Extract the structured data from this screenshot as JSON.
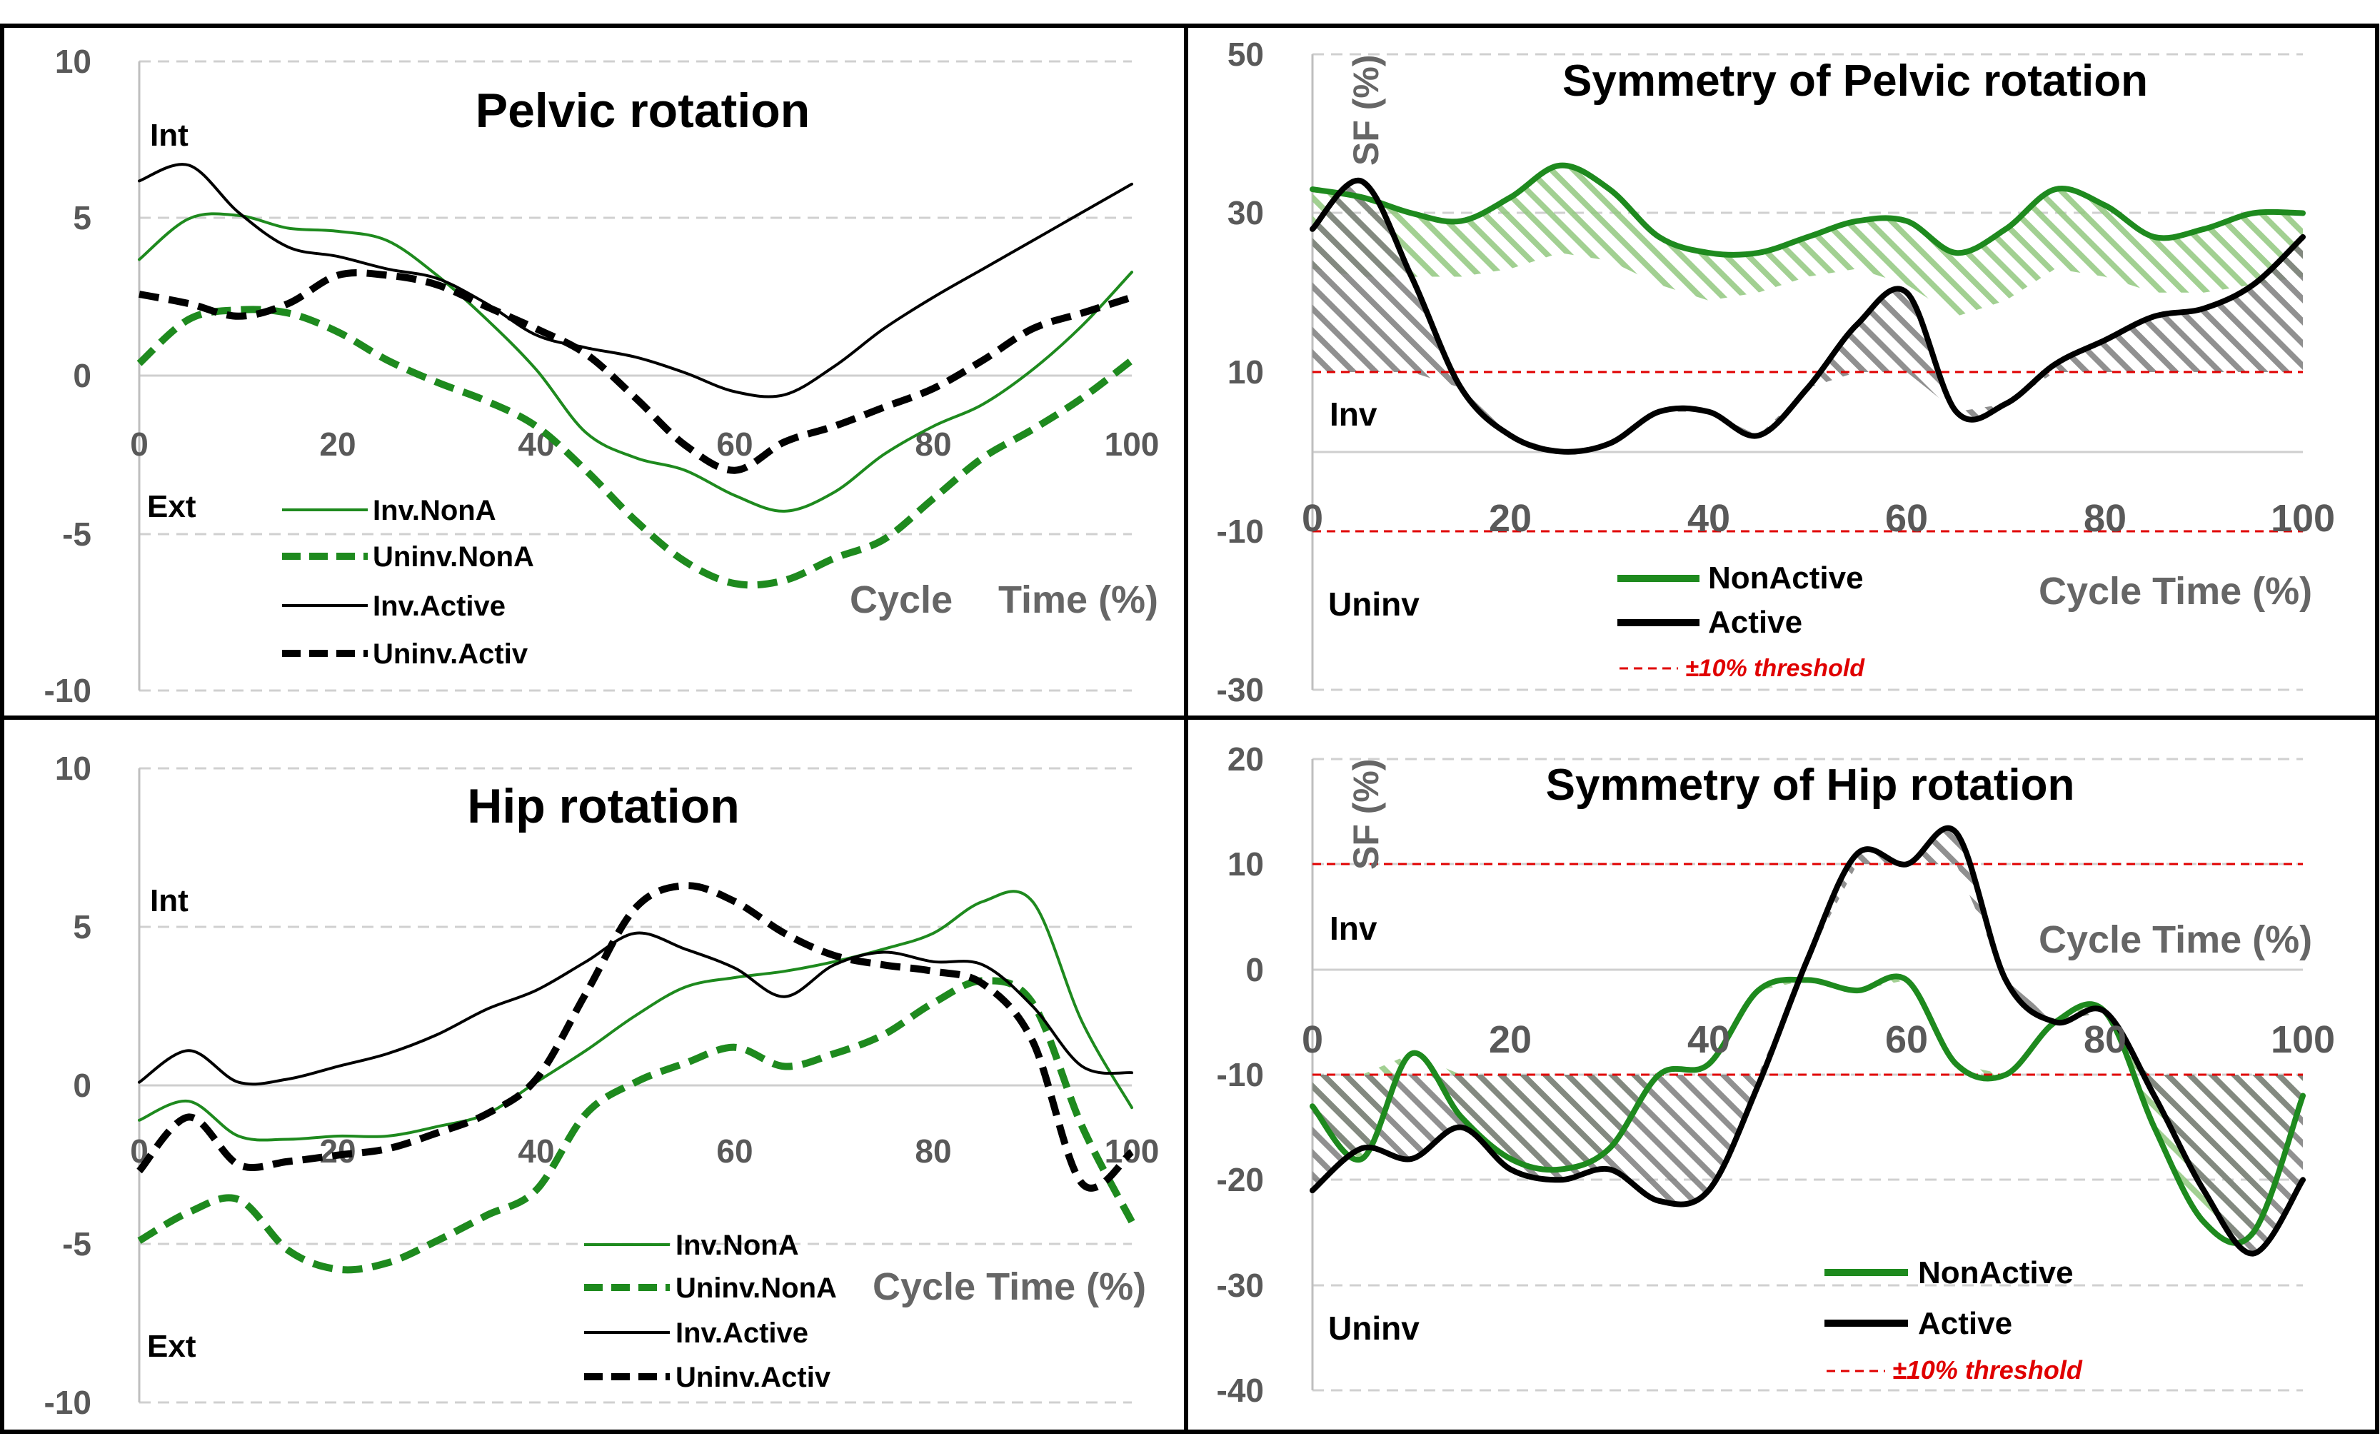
{
  "chart_data": [
    {
      "type": "line",
      "title": "Pelvic rotation",
      "xlabel": "Cycle Time (%)",
      "xlabel_parts": [
        "Cycle",
        "Time (%)"
      ],
      "ylabel": "",
      "xlim": [
        0,
        100
      ],
      "ylim": [
        -10,
        10
      ],
      "xticks": [
        "0",
        "20",
        "40",
        "60",
        "80",
        "100"
      ],
      "yticks": [
        "10",
        "5",
        "0",
        "-5",
        "-10"
      ],
      "annotations": {
        "top": "Int",
        "bottom": "Ext"
      },
      "series": [
        {
          "name": "Inv.NonA",
          "color": "#1e8a1e",
          "style": "solid",
          "width": "thin",
          "x": [
            0,
            5,
            10,
            15,
            20,
            25,
            30,
            35,
            40,
            45,
            50,
            55,
            60,
            65,
            70,
            75,
            80,
            85,
            90,
            95,
            100
          ],
          "y": [
            3.7,
            5.0,
            5.1,
            4.7,
            4.6,
            4.3,
            3.2,
            1.8,
            0.2,
            -1.8,
            -2.6,
            -3.0,
            -3.8,
            -4.3,
            -3.7,
            -2.5,
            -1.6,
            -0.9,
            0.2,
            1.6,
            3.3
          ]
        },
        {
          "name": "Uninv.NonA",
          "color": "#1e8a1e",
          "style": "dashed",
          "width": "thick",
          "x": [
            0,
            5,
            10,
            15,
            20,
            25,
            30,
            35,
            40,
            45,
            50,
            55,
            60,
            65,
            70,
            75,
            80,
            85,
            90,
            95,
            100
          ],
          "y": [
            0.4,
            1.8,
            2.1,
            2.0,
            1.4,
            0.5,
            -0.2,
            -0.8,
            -1.6,
            -3.0,
            -4.6,
            -5.9,
            -6.6,
            -6.5,
            -5.8,
            -5.2,
            -3.9,
            -2.6,
            -1.7,
            -0.7,
            0.5
          ]
        },
        {
          "name": "Inv.Active",
          "color": "#000000",
          "style": "solid",
          "width": "thin",
          "x": [
            0,
            5,
            10,
            15,
            20,
            25,
            30,
            35,
            40,
            45,
            50,
            55,
            60,
            65,
            70,
            75,
            80,
            85,
            90,
            95,
            100
          ],
          "y": [
            6.2,
            6.7,
            5.2,
            4.1,
            3.8,
            3.4,
            3.1,
            2.3,
            1.3,
            0.9,
            0.6,
            0.1,
            -0.5,
            -0.6,
            0.3,
            1.5,
            2.5,
            3.4,
            4.3,
            5.2,
            6.1
          ]
        },
        {
          "name": "Uninv.Activ",
          "color": "#000000",
          "style": "dashed",
          "width": "thick",
          "x": [
            0,
            5,
            10,
            15,
            20,
            25,
            30,
            35,
            40,
            45,
            50,
            55,
            60,
            65,
            70,
            75,
            80,
            85,
            90,
            95,
            100
          ],
          "y": [
            2.6,
            2.3,
            1.9,
            2.3,
            3.2,
            3.2,
            2.9,
            2.2,
            1.5,
            0.7,
            -0.7,
            -2.2,
            -3.0,
            -2.1,
            -1.6,
            -1.0,
            -0.4,
            0.5,
            1.5,
            2.0,
            2.5
          ]
        }
      ]
    },
    {
      "type": "line",
      "title": "Symmetry of Pelvic rotation",
      "xlabel": "Cycle Time (%)",
      "ylabel": "SF (%)",
      "xlim": [
        0,
        100
      ],
      "ylim": [
        -30,
        50
      ],
      "xticks": [
        "0",
        "20",
        "40",
        "60",
        "80",
        "100"
      ],
      "yticks": [
        "50",
        "30",
        "10",
        "-10",
        "-30"
      ],
      "annotations": {
        "upper": "Inv",
        "lower": "Uninv"
      },
      "threshold": {
        "label": "±10% threshold",
        "values": [
          10,
          -10
        ],
        "color": "#e00000"
      },
      "series": [
        {
          "name": "NonActive",
          "color": "#1e8a1e",
          "x": [
            0,
            5,
            10,
            15,
            20,
            25,
            30,
            35,
            40,
            45,
            50,
            55,
            60,
            65,
            70,
            75,
            80,
            85,
            90,
            95,
            100
          ],
          "y": [
            33,
            32,
            30,
            29,
            32,
            36,
            33,
            27,
            25,
            25,
            27,
            29,
            29,
            25,
            28,
            33,
            31,
            27,
            28,
            30,
            30
          ],
          "band_lower": [
            23,
            22,
            22,
            22,
            23,
            25,
            24,
            21,
            19,
            20,
            22,
            23,
            21,
            17,
            19,
            23,
            22,
            20,
            20,
            21,
            22
          ]
        },
        {
          "name": "Active",
          "color": "#000000",
          "x": [
            0,
            5,
            10,
            15,
            20,
            25,
            30,
            35,
            40,
            45,
            50,
            55,
            60,
            65,
            70,
            75,
            80,
            85,
            90,
            95,
            100
          ],
          "y": [
            28,
            34,
            22,
            8,
            2,
            0,
            1,
            5,
            5,
            2,
            8,
            16,
            20,
            5,
            6,
            11,
            14,
            17,
            18,
            21,
            27
          ]
        }
      ]
    },
    {
      "type": "line",
      "title": "Hip rotation",
      "xlabel": "Cycle Time (%)",
      "ylabel": "",
      "xlim": [
        0,
        100
      ],
      "ylim": [
        -10,
        10
      ],
      "xticks": [
        "0",
        "20",
        "40",
        "60",
        "80",
        "100"
      ],
      "yticks": [
        "10",
        "5",
        "0",
        "-5",
        "-10"
      ],
      "annotations": {
        "top": "Int",
        "bottom": "Ext"
      },
      "series": [
        {
          "name": "Inv.NonA",
          "color": "#1e8a1e",
          "style": "solid",
          "width": "thin",
          "x": [
            0,
            5,
            10,
            15,
            20,
            25,
            30,
            35,
            40,
            45,
            50,
            55,
            60,
            65,
            70,
            75,
            80,
            85,
            90,
            95,
            100
          ],
          "y": [
            -1.1,
            -0.5,
            -1.6,
            -1.7,
            -1.6,
            -1.6,
            -1.3,
            -0.9,
            0.1,
            1.1,
            2.2,
            3.1,
            3.4,
            3.6,
            3.9,
            4.3,
            4.8,
            5.8,
            5.8,
            2.0,
            -0.7
          ]
        },
        {
          "name": "Uninv.NonA",
          "color": "#1e8a1e",
          "style": "dashed",
          "width": "thick",
          "x": [
            0,
            5,
            10,
            15,
            20,
            25,
            30,
            35,
            40,
            45,
            50,
            55,
            60,
            65,
            70,
            75,
            80,
            85,
            90,
            95,
            100
          ],
          "y": [
            -4.9,
            -4.0,
            -3.6,
            -5.2,
            -5.8,
            -5.6,
            -4.9,
            -4.1,
            -3.3,
            -0.9,
            0.1,
            0.7,
            1.2,
            0.6,
            1.0,
            1.6,
            2.6,
            3.3,
            2.6,
            -1.3,
            -4.3
          ]
        },
        {
          "name": "Inv.Active",
          "color": "#000000",
          "style": "solid",
          "width": "thin",
          "x": [
            0,
            5,
            10,
            15,
            20,
            25,
            30,
            35,
            40,
            45,
            50,
            55,
            60,
            65,
            70,
            75,
            80,
            85,
            90,
            95,
            100
          ],
          "y": [
            0.1,
            1.1,
            0.1,
            0.2,
            0.6,
            1.0,
            1.6,
            2.4,
            3.0,
            3.9,
            4.8,
            4.3,
            3.7,
            2.8,
            3.8,
            4.2,
            3.9,
            3.8,
            2.5,
            0.6,
            0.4
          ]
        },
        {
          "name": "Uninv.Activ",
          "color": "#000000",
          "style": "dashed",
          "width": "thick",
          "x": [
            0,
            5,
            10,
            15,
            20,
            25,
            30,
            35,
            40,
            45,
            50,
            55,
            60,
            65,
            70,
            75,
            80,
            85,
            90,
            95,
            100
          ],
          "y": [
            -2.7,
            -1.0,
            -2.5,
            -2.4,
            -2.2,
            -2.0,
            -1.5,
            -0.9,
            0.2,
            2.9,
            5.6,
            6.3,
            5.8,
            4.8,
            4.1,
            3.8,
            3.6,
            3.2,
            1.4,
            -3.1,
            -2.1
          ]
        }
      ]
    },
    {
      "type": "line",
      "title": "Symmetry of Hip rotation",
      "xlabel": "Cycle Time (%)",
      "ylabel": "SF (%)",
      "xlim": [
        0,
        100
      ],
      "ylim": [
        -40,
        20
      ],
      "xticks": [
        "0",
        "20",
        "40",
        "60",
        "80",
        "100"
      ],
      "yticks": [
        "20",
        "10",
        "0",
        "-10",
        "-20",
        "-30",
        "-40"
      ],
      "annotations": {
        "upper": "Inv",
        "lower": "Uninv"
      },
      "threshold": {
        "label": "±10% threshold",
        "values": [
          10,
          -10
        ],
        "color": "#e00000"
      },
      "series": [
        {
          "name": "NonActive",
          "color": "#1e8a1e",
          "x": [
            0,
            5,
            10,
            15,
            20,
            25,
            30,
            35,
            40,
            45,
            50,
            55,
            60,
            65,
            70,
            75,
            80,
            85,
            90,
            95,
            100
          ],
          "y": [
            -13,
            -18,
            -8,
            -14,
            -18,
            -19,
            -17,
            -10,
            -9,
            -2,
            -1,
            -2,
            -1,
            -9,
            -10,
            -5,
            -4,
            -15,
            -24,
            -25,
            -12
          ]
        },
        {
          "name": "Active",
          "color": "#000000",
          "x": [
            0,
            5,
            10,
            15,
            20,
            25,
            30,
            35,
            40,
            45,
            50,
            55,
            60,
            65,
            70,
            75,
            80,
            85,
            90,
            95,
            100
          ],
          "y": [
            -21,
            -17,
            -18,
            -15,
            -19,
            -20,
            -19,
            -22,
            -21,
            -11,
            1,
            11,
            10,
            13,
            -1,
            -5,
            -4,
            -12,
            -21,
            -27,
            -20
          ]
        }
      ]
    }
  ]
}
